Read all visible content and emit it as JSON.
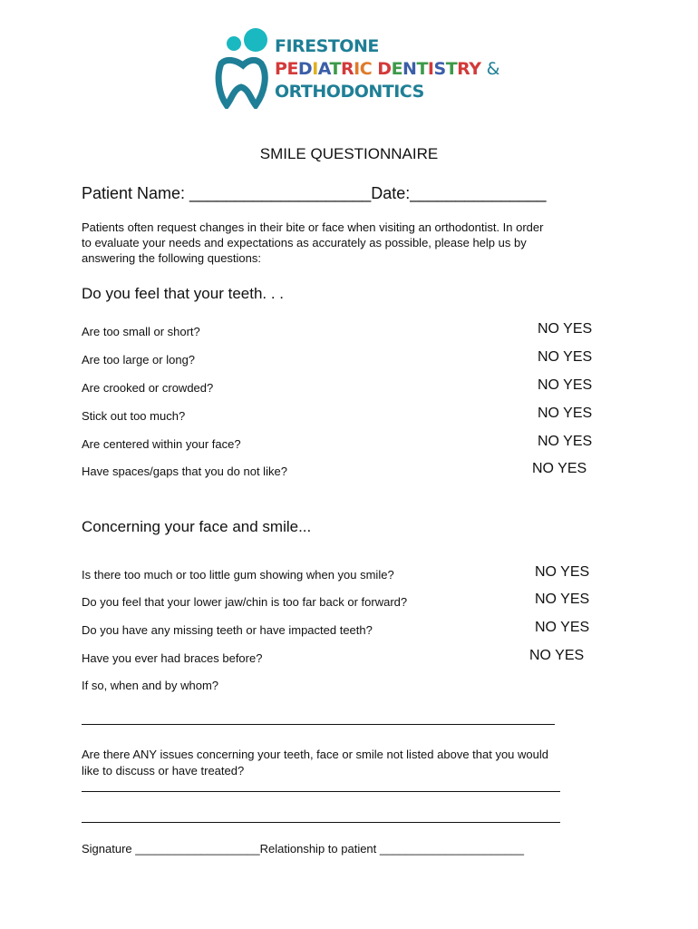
{
  "logo": {
    "line1": "FIRESTONE",
    "line2_letters": [
      "P",
      "E",
      "D",
      "I",
      "A",
      "T",
      "R",
      "I",
      "C",
      " ",
      "D",
      "E",
      "N",
      "T",
      "I",
      "S",
      "T",
      "R",
      "Y"
    ],
    "line2_colors": [
      "#d33a3a",
      "#d33a3a",
      "#3b5ea8",
      "#e0b020",
      "#3b5ea8",
      "#3c9a4a",
      "#d33a3a",
      "#e07a2a",
      "#e07a2a",
      "#fff",
      "#d33a3a",
      "#3c9a4a",
      "#3b5ea8",
      "#3c9a4a",
      "#d33a3a",
      "#3b5ea8",
      "#3c9a4a",
      "#d33a3a",
      "#d33a3a"
    ],
    "ampersand": "&",
    "line3": "ORTHODONTICS",
    "teal": "#1f7f96",
    "circle_color": "#1ab8c0"
  },
  "title": "SMILE QUESTIONNAIRE",
  "patient_name_label": "Patient Name: ____________________Date:_______________",
  "intro": [
    "Patients often request changes in their bite or face when visiting an orthodontist. In order",
    "to evaluate your needs and expectations as accurately as possible, please help us by",
    "answering the following questions:"
  ],
  "section1": {
    "heading": "Do you feel that your teeth. . .",
    "questions": [
      "Are too small or short?",
      "Are too large or long?",
      "Are crooked or crowded?",
      "Stick out too much?",
      "Are centered within your face?",
      "Have spaces/gaps that you do not like?"
    ]
  },
  "section2": {
    "heading": "Concerning your face and smile...",
    "questions": [
      "Is there too much or too little gum showing when you smile?",
      "Do you feel that your lower jaw/chin is too far back or forward?",
      "Do you have any missing teeth or have impacted teeth?",
      "Have you ever had braces before?"
    ]
  },
  "no_yes": "NO YES",
  "if_so": "If so, when and by whom?",
  "any_issues": [
    "Are there ANY issues concerning your teeth, face or smile not listed above that you would",
    "like to discuss or have treated?"
  ],
  "signature_line": "Signature ___________________Relationship to patient ______________________"
}
